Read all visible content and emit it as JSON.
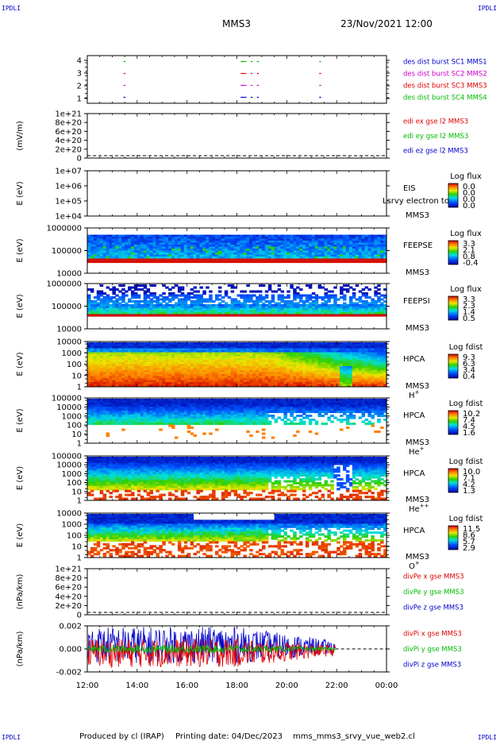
{
  "header": {
    "spacecraft": "MMS3",
    "datetime": "23/Nov/2021 12:00",
    "corner_label": "IPDLI"
  },
  "footer": {
    "producer": "Produced by cl (IRAP)",
    "printing": "Printing date: 04/Dec/2023",
    "script": "mms_mms3_srvy_vue_web2.cl"
  },
  "time_axis": {
    "ticks": [
      "12:00",
      "14:00",
      "16:00",
      "18:00",
      "20:00",
      "22:00",
      "00:00"
    ],
    "range_hours": [
      12,
      24
    ]
  },
  "colors": {
    "red": "#e00000",
    "green": "#00bb00",
    "blue": "#0000cc",
    "magenta": "#cc00cc"
  },
  "chart_data": [
    {
      "type": "scatter",
      "id": "burst",
      "ylabel": "",
      "yticks": [
        "4",
        "3",
        "2",
        "1"
      ],
      "ylim": [
        0.5,
        4.5
      ],
      "legend": [
        {
          "text": "des dist burst SC1 MMS1",
          "color": "#0000cc"
        },
        {
          "text": "des dist burst SC2 MMS2",
          "color": "#cc00cc"
        },
        {
          "text": "des dist burst SC3 MMS3",
          "color": "#e00000"
        },
        {
          "text": "des dist burst SC4 MMS4",
          "color": "#00bb00"
        }
      ],
      "series": [
        {
          "y": 4,
          "color": "#00bb00",
          "x": [
            13.45,
            18.15,
            18.22,
            18.3,
            18.55,
            18.8,
            21.3
          ]
        },
        {
          "y": 3,
          "color": "#e00000",
          "x": [
            13.45,
            18.15,
            18.22,
            18.3,
            18.55,
            18.8,
            21.3
          ]
        },
        {
          "y": 2,
          "color": "#cc00cc",
          "x": [
            13.45,
            18.15,
            18.22,
            18.3,
            18.55,
            18.8,
            21.3
          ]
        },
        {
          "y": 1,
          "color": "#0000cc",
          "x": [
            13.45,
            18.15,
            18.22,
            18.3,
            18.55,
            18.8,
            21.3
          ]
        }
      ]
    },
    {
      "type": "line",
      "id": "edi",
      "ylabel": "(mV/m)",
      "yticks": [
        "1e+21",
        "8e+20",
        "6e+20",
        "4e+20",
        "2e+20",
        "0"
      ],
      "legend": [
        {
          "text": "edi ex gse l2 MMS3",
          "color": "#e00000"
        },
        {
          "text": "edi ey gse l2 MMS3",
          "color": "#00bb00"
        },
        {
          "text": "edi ez gse l2 MMS3",
          "color": "#0000cc"
        }
      ]
    },
    {
      "type": "heatmap",
      "id": "eis",
      "ylabel": "E (eV)",
      "yticks": [
        "1e+07",
        "1e+06",
        "1e+05",
        "1e+04"
      ],
      "instrument": "EIS",
      "sc": "MMS3",
      "overlay_text": "Lsrvy electron to",
      "colorbar_title": "Log flux",
      "colorbar_ticks": [
        "0.0",
        "0.0",
        "0.0",
        "0.0"
      ]
    },
    {
      "type": "heatmap",
      "id": "feepse",
      "ylabel": "E (eV)",
      "yticks": [
        "1000000",
        "100000",
        "10000"
      ],
      "instrument": "FEEPSE",
      "sc": "MMS3",
      "colorbar_title": "Log flux",
      "colorbar_ticks": [
        "3.3",
        "2.1",
        "0.8",
        "-0.4"
      ]
    },
    {
      "type": "heatmap",
      "id": "feepsi",
      "ylabel": "E (eV)",
      "yticks": [
        "1000000",
        "100000",
        "10000"
      ],
      "instrument": "FEEPSI",
      "sc": "MMS3",
      "colorbar_title": "Log flux",
      "colorbar_ticks": [
        "3.3",
        "2.3",
        "1.4",
        "0.5"
      ]
    },
    {
      "type": "heatmap",
      "id": "hpca_h",
      "ylabel": "E (eV)",
      "yticks": [
        "10000",
        "1000",
        "100",
        "10",
        "1"
      ],
      "instrument": "HPCA",
      "sc": "MMS3",
      "species": "H",
      "charge": "+",
      "colorbar_title": "Log fdist",
      "colorbar_ticks": [
        "9.3",
        "6.3",
        "3.4",
        "0.4"
      ]
    },
    {
      "type": "heatmap",
      "id": "hpca_he",
      "ylabel": "E (eV)",
      "yticks": [
        "100000",
        "10000",
        "1000",
        "100",
        "10",
        "1"
      ],
      "instrument": "HPCA",
      "sc": "MMS3",
      "species": "He",
      "charge": "+",
      "colorbar_title": "Log fdist",
      "colorbar_ticks": [
        "10.2",
        "7.4",
        "4.5",
        "1.6"
      ]
    },
    {
      "type": "heatmap",
      "id": "hpca_hepp",
      "ylabel": "E (eV)",
      "yticks": [
        "100000",
        "10000",
        "1000",
        "100",
        "10",
        "1"
      ],
      "instrument": "HPCA",
      "sc": "MMS3",
      "species": "He",
      "charge": "++",
      "colorbar_title": "Log fdist",
      "colorbar_ticks": [
        "10.0",
        "7.1",
        "4.2",
        "1.3"
      ]
    },
    {
      "type": "heatmap",
      "id": "hpca_o",
      "ylabel": "E (eV)",
      "yticks": [
        "10000",
        "1000",
        "100",
        "10",
        "1"
      ],
      "instrument": "HPCA",
      "sc": "MMS3",
      "species": "O",
      "charge": "+",
      "colorbar_title": "Log fdist",
      "colorbar_ticks": [
        "11.5",
        "8.6",
        "5.7",
        "2.9"
      ]
    },
    {
      "type": "line",
      "id": "divpe",
      "ylabel": "(nPa/km)",
      "yticks": [
        "1e+21",
        "8e+20",
        "6e+20",
        "4e+20",
        "2e+20",
        "0"
      ],
      "legend": [
        {
          "text": "divPe x gse MMS3",
          "color": "#e00000"
        },
        {
          "text": "divPe y gse MMS3",
          "color": "#00bb00"
        },
        {
          "text": "divPe z gse MMS3",
          "color": "#0000cc"
        }
      ]
    },
    {
      "type": "line",
      "id": "divpi",
      "ylabel": "(nPa/km)",
      "yticks": [
        "0.002",
        "0.000",
        "-0.002"
      ],
      "ylim": [
        -0.0035,
        0.0035
      ],
      "data_end_hour": 21.95,
      "legend": [
        {
          "text": "divPi x gse MMS3",
          "color": "#e00000"
        },
        {
          "text": "divPi y gse MMS3",
          "color": "#00bb00"
        },
        {
          "text": "divPi z gse MMS3",
          "color": "#0000cc"
        }
      ]
    }
  ]
}
